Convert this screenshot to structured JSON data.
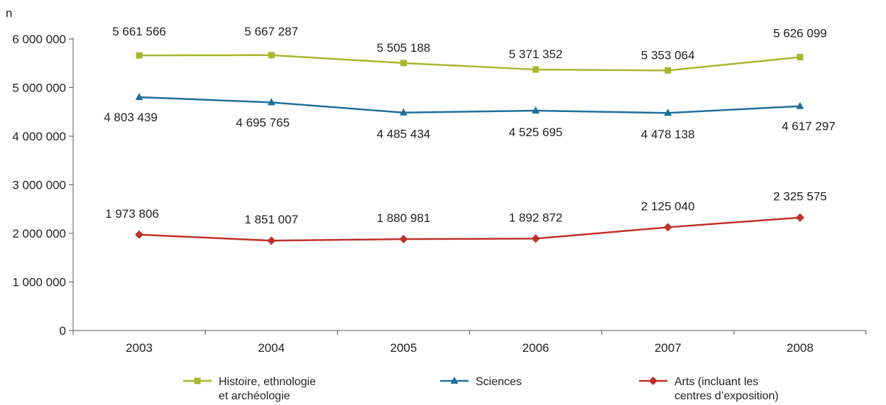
{
  "chart_data": {
    "type": "line",
    "title": "",
    "xlabel": "",
    "ylabel": "n",
    "categories": [
      "2003",
      "2004",
      "2005",
      "2006",
      "2007",
      "2008"
    ],
    "ylim": [
      0,
      6000000
    ],
    "yticks": [
      0,
      1000000,
      2000000,
      3000000,
      4000000,
      5000000,
      6000000
    ],
    "ytick_labels": [
      "0",
      "1 000 000",
      "2 000 000",
      "3 000 000",
      "4 000 000",
      "5 000 000",
      "6 000 000"
    ],
    "grid": false,
    "legend_position": "bottom",
    "series": [
      {
        "name": "Histoire, ethnologie et archéologie",
        "legend_lines": [
          "Histoire, ethnologie",
          "et archéologie"
        ],
        "color": "#a8b62f",
        "marker": "square",
        "values": [
          5661566,
          5667287,
          5505188,
          5371352,
          5353064,
          5626099
        ],
        "labels": [
          "5 661 566",
          "5 667 287",
          "5 505 188",
          "5 371 352",
          "5 353 064",
          "5 626 099"
        ]
      },
      {
        "name": "Sciences",
        "legend_lines": [
          "Sciences"
        ],
        "color": "#1f6f99",
        "marker": "triangle",
        "values": [
          4803439,
          4695765,
          4485434,
          4525695,
          4478138,
          4617297
        ],
        "labels": [
          "4 803 439",
          "4 695 765",
          "4 485 434",
          "4 525 695",
          "4 478 138",
          "4 617 297"
        ]
      },
      {
        "name": "Arts (incluant les centres d’exposition)",
        "legend_lines": [
          "Arts (incluant les",
          "centres d’exposition)"
        ],
        "color": "#c0302a",
        "marker": "diamond",
        "values": [
          1973806,
          1851007,
          1880981,
          1892872,
          2125040,
          2325575
        ],
        "labels": [
          "1 973 806",
          "1 851 007",
          "1 880 981",
          "1 892 872",
          "2 125 040",
          "2 325 575"
        ]
      }
    ]
  }
}
